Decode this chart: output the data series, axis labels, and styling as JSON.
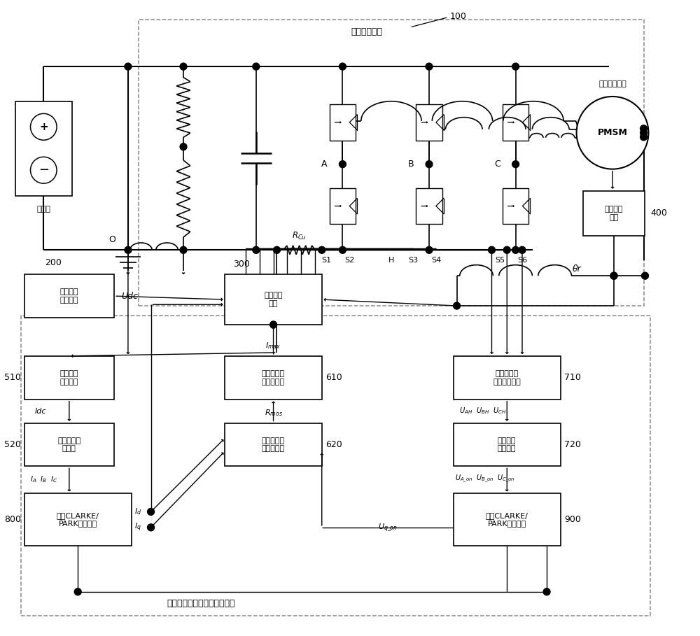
{
  "bg": "#ffffff",
  "lc": "#000000",
  "dc": "#888888",
  "fs": 9.0,
  "fss": 8.0,
  "labels": {
    "inverter": "两电平逆变器",
    "num100": "100",
    "pmsm_top": "永磁同步电机",
    "pmsm": "PMSM",
    "battery": "锂电池",
    "hall": "霍尔传感\n感器",
    "num400": "400",
    "bus_v": "母线电压\n采集单元",
    "num200": "200",
    "vec": "矢量控制\n单元",
    "num300": "300",
    "bus_c": "母线电流\n采集单元",
    "num510": "510",
    "recon": "三相电流重\n构单元",
    "num520": "520",
    "pcl": "功率器件电\n流限制单元",
    "num610": "610",
    "pri": "功率器件内\n阻计算单元",
    "num620": "620",
    "tpl": "三相下桥臂\n电压采集单元",
    "num710": "710",
    "cv": "导通电压\n计算单元",
    "num720": "720",
    "c1": "第一CLARKE/\nPARK变换单元",
    "num800": "800",
    "c2": "第二CLARKE/\nPARK变换单元",
    "num900": "900",
    "sys": "功率器件控制与过温保护系统",
    "O": "O",
    "Udc": "Udc",
    "Idc": "Idc",
    "Imax": "$I_{max}$",
    "Rmos": "$R_{mos}$",
    "RCu": "$R_{Cu}$",
    "UAH": "$U_{AH}$  $U_{BH}$  $U_{CH}$",
    "UA_on": "$U_{A\\_on}$  $U_{B\\_on}$  $U_{C\\_on}$",
    "IA": "$I_A$  $I_B$  $I_C$",
    "Id": "$I_d$",
    "Iq": "$I_q$",
    "Uq_on": "$U_{q\\_on}$",
    "theta": "θr",
    "A": "A",
    "B": "B",
    "C": "C",
    "H": "H",
    "S1": "S1",
    "S2": "S2",
    "S3": "S3",
    "S4": "S4",
    "S5": "S5",
    "S6": "S6"
  }
}
